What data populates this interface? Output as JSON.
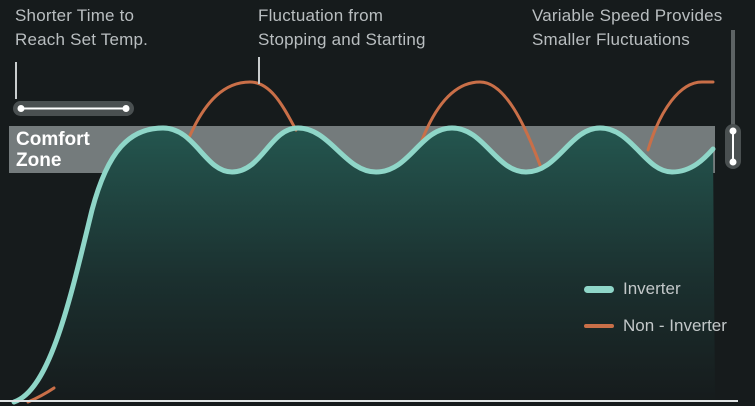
{
  "annotations": {
    "shorter_time": [
      "Shorter Time to",
      "Reach Set Temp."
    ],
    "fluctuation": [
      "Fluctuation from",
      "Stopping and Starting"
    ],
    "variable_speed": [
      "Variable Speed Provides",
      "Smaller Fluctuations"
    ]
  },
  "comfort_zone": [
    "Comfort",
    "Zone"
  ],
  "legend": {
    "inverter": "Inverter",
    "non_inverter": "Non - Inverter"
  },
  "colors": {
    "background": "#161b1c",
    "inverter": "#8fd6c8",
    "non_inverter": "#c96f48",
    "comfort_zone": "#858b8c",
    "marker": "#dfe3e4",
    "fill_top": "#24564f"
  }
}
